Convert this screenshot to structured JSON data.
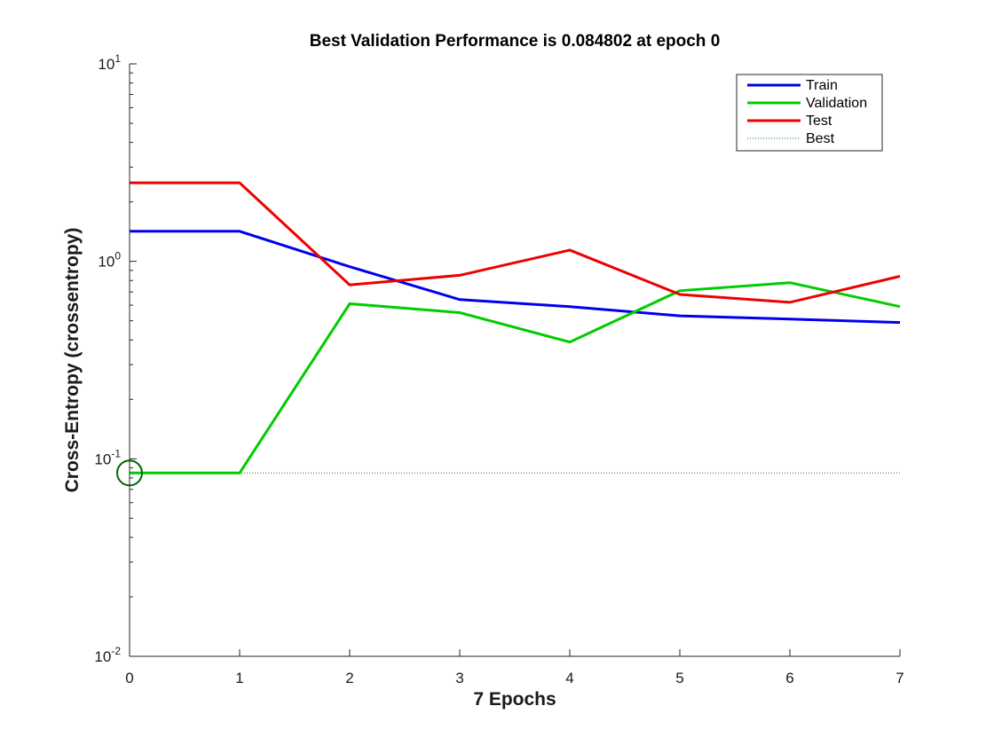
{
  "chart_data": {
    "type": "line",
    "title": "Best Validation Performance is 0.084802 at epoch 0",
    "xlabel": "7 Epochs",
    "ylabel": "Cross-Entropy  (crossentropy)",
    "xlim": [
      0,
      7
    ],
    "ylim": [
      0.01,
      10
    ],
    "yscale": "log",
    "x_ticks": [
      0,
      1,
      2,
      3,
      4,
      5,
      6,
      7
    ],
    "y_ticks": [
      {
        "value": 0.01,
        "base": "10",
        "exp": "-2"
      },
      {
        "value": 0.1,
        "base": "10",
        "exp": "-1"
      },
      {
        "value": 1,
        "base": "10",
        "exp": "0"
      },
      {
        "value": 10,
        "base": "10",
        "exp": "1"
      }
    ],
    "x": [
      0,
      1,
      2,
      3,
      4,
      5,
      6,
      7
    ],
    "series": [
      {
        "name": "Train",
        "color": "#0000ee",
        "values": [
          1.42,
          1.42,
          0.94,
          0.64,
          0.59,
          0.53,
          0.51,
          0.49
        ]
      },
      {
        "name": "Validation",
        "color": "#00cc00",
        "values": [
          0.084802,
          0.084802,
          0.61,
          0.55,
          0.39,
          0.71,
          0.78,
          0.59
        ]
      },
      {
        "name": "Test",
        "color": "#ee0000",
        "values": [
          2.5,
          2.5,
          0.76,
          0.85,
          1.14,
          0.68,
          0.62,
          0.84
        ]
      }
    ],
    "best": {
      "name": "Best",
      "epoch": 0,
      "value": 0.084802,
      "color": "#008800",
      "marker_color": "#006600"
    },
    "legend_position": "top-right",
    "grid": false
  }
}
